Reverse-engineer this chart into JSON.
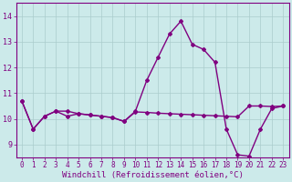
{
  "title": "",
  "xlabel": "Windchill (Refroidissement éolien,°C)",
  "ylabel": "",
  "bg_color": "#cceaea",
  "line_color": "#800080",
  "grid_color": "#aacccc",
  "xlim": [
    -0.5,
    23.5
  ],
  "ylim": [
    8.5,
    14.5
  ],
  "yticks": [
    9,
    10,
    11,
    12,
    13,
    14
  ],
  "xticks": [
    0,
    1,
    2,
    3,
    4,
    5,
    6,
    7,
    8,
    9,
    10,
    11,
    12,
    13,
    14,
    15,
    16,
    17,
    18,
    19,
    20,
    21,
    22,
    23
  ],
  "series1_x": [
    0,
    1,
    2,
    3,
    4,
    5,
    6,
    7,
    8,
    9,
    10,
    11,
    12,
    13,
    14,
    15,
    16,
    17,
    18,
    19,
    20,
    21,
    22,
    23
  ],
  "series1_y": [
    10.7,
    9.6,
    10.1,
    10.3,
    10.1,
    10.2,
    10.15,
    10.1,
    10.05,
    9.9,
    10.3,
    11.5,
    12.4,
    13.3,
    13.8,
    12.9,
    12.7,
    12.2,
    9.6,
    8.6,
    8.55,
    9.6,
    10.4,
    10.5
  ],
  "series2_x": [
    0,
    1,
    2,
    3,
    4,
    5,
    6,
    7,
    8,
    9,
    10,
    11,
    12,
    13,
    14,
    15,
    16,
    17,
    18,
    19,
    20,
    21,
    22,
    23
  ],
  "series2_y": [
    10.7,
    9.6,
    10.1,
    10.3,
    10.3,
    10.2,
    10.15,
    10.1,
    10.05,
    9.9,
    10.27,
    10.25,
    10.22,
    10.2,
    10.18,
    10.16,
    10.14,
    10.12,
    10.1,
    10.08,
    10.5,
    10.5,
    10.48,
    10.5
  ],
  "xlabel_fontsize": 6.5,
  "tick_fontsize": 5.5
}
